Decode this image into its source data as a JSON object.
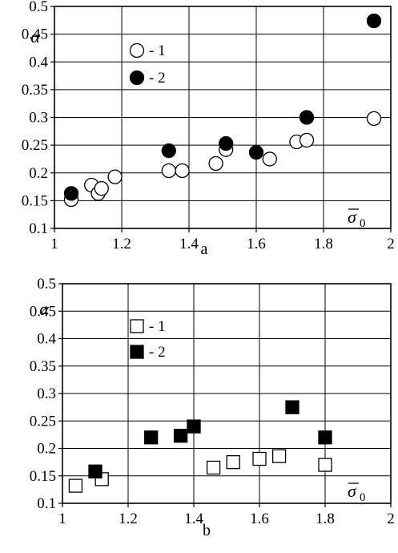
{
  "chart_data": [
    {
      "type": "scatter",
      "panel_label": "a",
      "ylabel": "α",
      "xlabel_symbol": "σ",
      "xlabel_subscript": "0",
      "xlim": [
        1,
        2
      ],
      "ylim": [
        0.1,
        0.5
      ],
      "x_ticks": [
        "1",
        "1.2",
        "1.4",
        "1.6",
        "1.8",
        "2"
      ],
      "y_ticks": [
        "0.1",
        "0.15",
        "0.2",
        "0.25",
        "0.3",
        "0.35",
        "0.4",
        "0.45",
        "0.5"
      ],
      "grid": true,
      "legend_placement": "top-left",
      "marker": "circle",
      "series": [
        {
          "legend": "- 1",
          "fill": "open",
          "points": [
            [
              1.05,
              0.152
            ],
            [
              1.11,
              0.178
            ],
            [
              1.13,
              0.163
            ],
            [
              1.14,
              0.172
            ],
            [
              1.18,
              0.193
            ],
            [
              1.34,
              0.204
            ],
            [
              1.38,
              0.204
            ],
            [
              1.48,
              0.217
            ],
            [
              1.51,
              0.242
            ],
            [
              1.64,
              0.225
            ],
            [
              1.72,
              0.256
            ],
            [
              1.75,
              0.259
            ],
            [
              1.95,
              0.298
            ]
          ]
        },
        {
          "legend": "- 2",
          "fill": "solid",
          "points": [
            [
              1.05,
              0.163
            ],
            [
              1.34,
              0.24
            ],
            [
              1.51,
              0.253
            ],
            [
              1.6,
              0.237
            ],
            [
              1.75,
              0.3
            ],
            [
              1.95,
              0.474
            ]
          ]
        }
      ]
    },
    {
      "type": "scatter",
      "panel_label": "b",
      "ylabel": "α",
      "xlabel_symbol": "σ",
      "xlabel_subscript": "0",
      "xlim": [
        1,
        2
      ],
      "ylim": [
        0.1,
        0.5
      ],
      "x_ticks": [
        "1",
        "1.2",
        "1.4",
        "1.6",
        "1.8",
        "2"
      ],
      "y_ticks": [
        "0.1",
        "0.15",
        "0.2",
        "0.25",
        "0.3",
        "0.35",
        "0.4",
        "0.45",
        "0.5"
      ],
      "grid": true,
      "legend_placement": "top-left",
      "marker": "square",
      "series": [
        {
          "legend": "- 1",
          "fill": "open",
          "points": [
            [
              1.04,
              0.132
            ],
            [
              1.12,
              0.144
            ],
            [
              1.46,
              0.165
            ],
            [
              1.52,
              0.175
            ],
            [
              1.6,
              0.181
            ],
            [
              1.66,
              0.186
            ],
            [
              1.8,
              0.17
            ]
          ]
        },
        {
          "legend": "- 2",
          "fill": "solid",
          "points": [
            [
              1.1,
              0.158
            ],
            [
              1.27,
              0.22
            ],
            [
              1.36,
              0.223
            ],
            [
              1.4,
              0.24
            ],
            [
              1.7,
              0.275
            ],
            [
              1.8,
              0.22
            ]
          ]
        }
      ]
    }
  ],
  "colors": {
    "axis": "#000000",
    "grid": "#000000",
    "marker_fill_solid": "#000000",
    "marker_fill_open": "#ffffff"
  }
}
